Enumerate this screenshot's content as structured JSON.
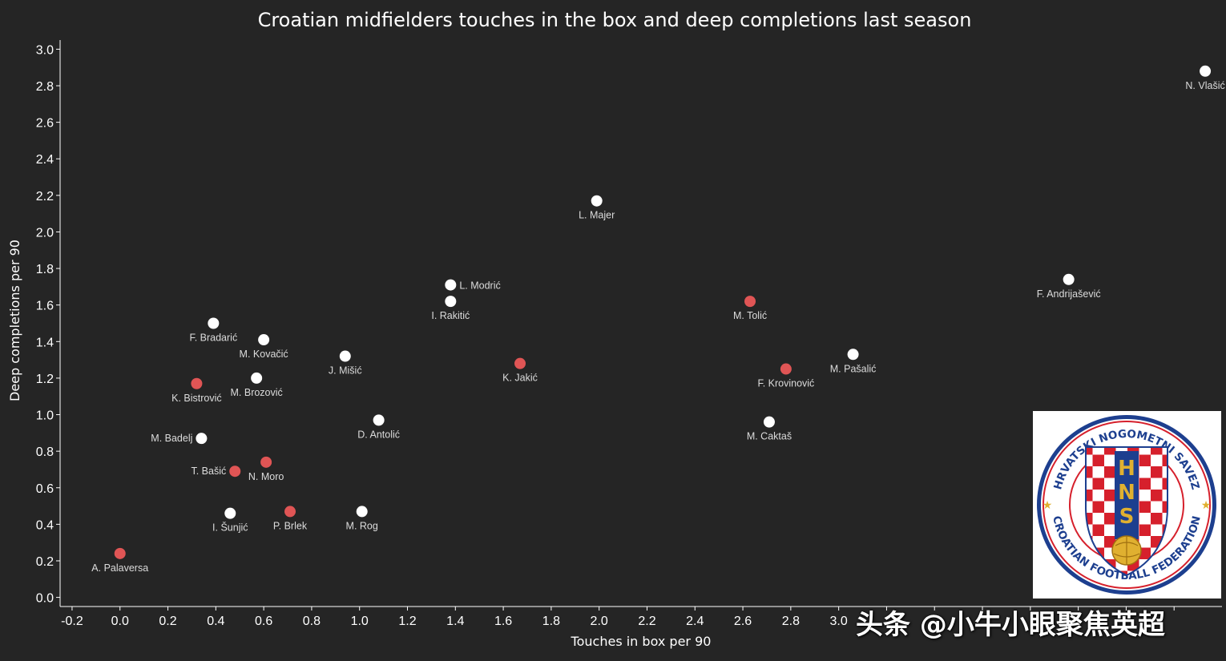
{
  "chart_data": {
    "type": "scatter",
    "title": "Croatian midfielders touches in the box and deep completions last season",
    "xlabel": "Touches in box per 90",
    "ylabel": "Deep completions per 90",
    "xlim": [
      -0.25,
      4.6
    ],
    "ylim": [
      -0.05,
      3.05
    ],
    "xticks": [
      -0.2,
      0.0,
      0.2,
      0.4,
      0.6,
      0.8,
      1.0,
      1.2,
      1.4,
      1.6,
      1.8,
      2.0,
      2.2,
      2.4,
      2.6,
      2.8,
      3.0
    ],
    "xtick_labels": [
      "-0.2",
      "0.0",
      "0.2",
      "0.4",
      "0.6",
      "0.8",
      "1.0",
      "1.2",
      "1.4",
      "1.6",
      "1.8",
      "2.0",
      "2.2",
      "2.4",
      "2.6",
      "2.8",
      "3.0"
    ],
    "yticks": [
      0.0,
      0.2,
      0.4,
      0.6,
      0.8,
      1.0,
      1.2,
      1.4,
      1.6,
      1.8,
      2.0,
      2.2,
      2.4,
      2.6,
      2.8,
      3.0
    ],
    "ytick_labels": [
      "0.0",
      "0.2",
      "0.4",
      "0.6",
      "0.8",
      "1.0",
      "1.2",
      "1.4",
      "1.6",
      "1.8",
      "2.0",
      "2.2",
      "2.4",
      "2.6",
      "2.8",
      "3.0"
    ],
    "grid": false,
    "colors": {
      "white": "#ffffff",
      "red": "#e05555",
      "background": "#252525"
    },
    "points": [
      {
        "name": "N. Vlašić",
        "x": 4.53,
        "y": 2.88,
        "color": "white",
        "label_pos": "below"
      },
      {
        "name": "L. Majer",
        "x": 1.99,
        "y": 2.17,
        "color": "white",
        "label_pos": "below"
      },
      {
        "name": "F. Andrijašević",
        "x": 3.96,
        "y": 1.74,
        "color": "white",
        "label_pos": "below"
      },
      {
        "name": "L. Modrić",
        "x": 1.38,
        "y": 1.71,
        "color": "white",
        "label_pos": "right"
      },
      {
        "name": "I. Rakitić",
        "x": 1.38,
        "y": 1.62,
        "color": "white",
        "label_pos": "below"
      },
      {
        "name": "M. Tolić",
        "x": 2.63,
        "y": 1.62,
        "color": "red",
        "label_pos": "below"
      },
      {
        "name": "F. Bradarić",
        "x": 0.39,
        "y": 1.5,
        "color": "white",
        "label_pos": "below"
      },
      {
        "name": "M. Kovačić",
        "x": 0.6,
        "y": 1.41,
        "color": "white",
        "label_pos": "below"
      },
      {
        "name": "M. Pašalić",
        "x": 3.06,
        "y": 1.33,
        "color": "white",
        "label_pos": "below"
      },
      {
        "name": "J. Mišić",
        "x": 0.94,
        "y": 1.32,
        "color": "white",
        "label_pos": "below"
      },
      {
        "name": "K. Jakić",
        "x": 1.67,
        "y": 1.28,
        "color": "red",
        "label_pos": "below"
      },
      {
        "name": "F. Krovinović",
        "x": 2.78,
        "y": 1.25,
        "color": "red",
        "label_pos": "below"
      },
      {
        "name": "M. Brozović",
        "x": 0.57,
        "y": 1.2,
        "color": "white",
        "label_pos": "below"
      },
      {
        "name": "K. Bistrović",
        "x": 0.32,
        "y": 1.17,
        "color": "red",
        "label_pos": "below"
      },
      {
        "name": "D. Antolić",
        "x": 1.08,
        "y": 0.97,
        "color": "white",
        "label_pos": "below"
      },
      {
        "name": "M. Caktaš",
        "x": 2.71,
        "y": 0.96,
        "color": "white",
        "label_pos": "below"
      },
      {
        "name": "M. Badelj",
        "x": 0.34,
        "y": 0.87,
        "color": "white",
        "label_pos": "left"
      },
      {
        "name": "N. Moro",
        "x": 0.61,
        "y": 0.74,
        "color": "red",
        "label_pos": "below"
      },
      {
        "name": "T. Bašić",
        "x": 0.48,
        "y": 0.69,
        "color": "red",
        "label_pos": "left"
      },
      {
        "name": "P. Brlek",
        "x": 0.71,
        "y": 0.47,
        "color": "red",
        "label_pos": "below"
      },
      {
        "name": "M. Rog",
        "x": 1.01,
        "y": 0.47,
        "color": "white",
        "label_pos": "below"
      },
      {
        "name": "I. Šunjić",
        "x": 0.46,
        "y": 0.46,
        "color": "white",
        "label_pos": "below"
      },
      {
        "name": "A. Palaversa",
        "x": 0.0,
        "y": 0.24,
        "color": "red",
        "label_pos": "below"
      }
    ]
  },
  "logo": {
    "text_top": "HRVATSKI NOGOMETNI SAVEZ",
    "text_bottom": "CROATIAN FOOTBALL FEDERATION",
    "letters": "HNS",
    "colors": {
      "blue": "#1d3f8f",
      "red": "#d6202c",
      "gold": "#e0b030",
      "white": "#ffffff"
    }
  },
  "watermark": {
    "text": "头条 @小牛小眼聚焦英超"
  }
}
